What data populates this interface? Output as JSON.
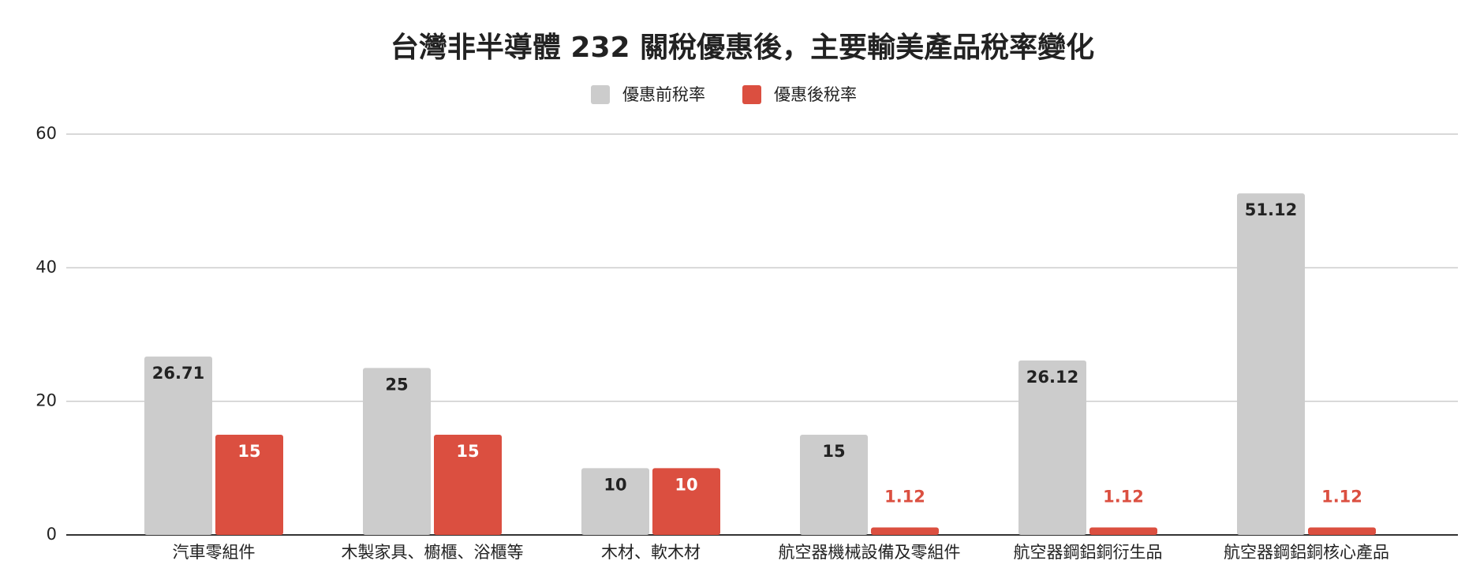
{
  "chart_data": {
    "type": "bar",
    "title": "台灣非半導體 232 關稅優惠後，主要輸美產品稅率變化",
    "categories": [
      "汽車零組件",
      "木製家具、櫥櫃、浴櫃等",
      "木材、軟木材",
      "航空器機械設備及零組件",
      "航空器鋼鋁銅衍生品",
      "航空器鋼鋁銅核心產品"
    ],
    "series": [
      {
        "name": "優惠前稅率",
        "color": "#cccccc",
        "values": [
          26.71,
          25,
          10,
          15,
          26.12,
          51.12
        ]
      },
      {
        "name": "優惠後稅率",
        "color": "#db4f40",
        "values": [
          15,
          15,
          10,
          1.12,
          1.12,
          1.12
        ]
      }
    ],
    "ylim": [
      0,
      60
    ],
    "yticks": [
      0,
      20,
      40,
      60
    ],
    "grid": true,
    "legend": "top"
  }
}
